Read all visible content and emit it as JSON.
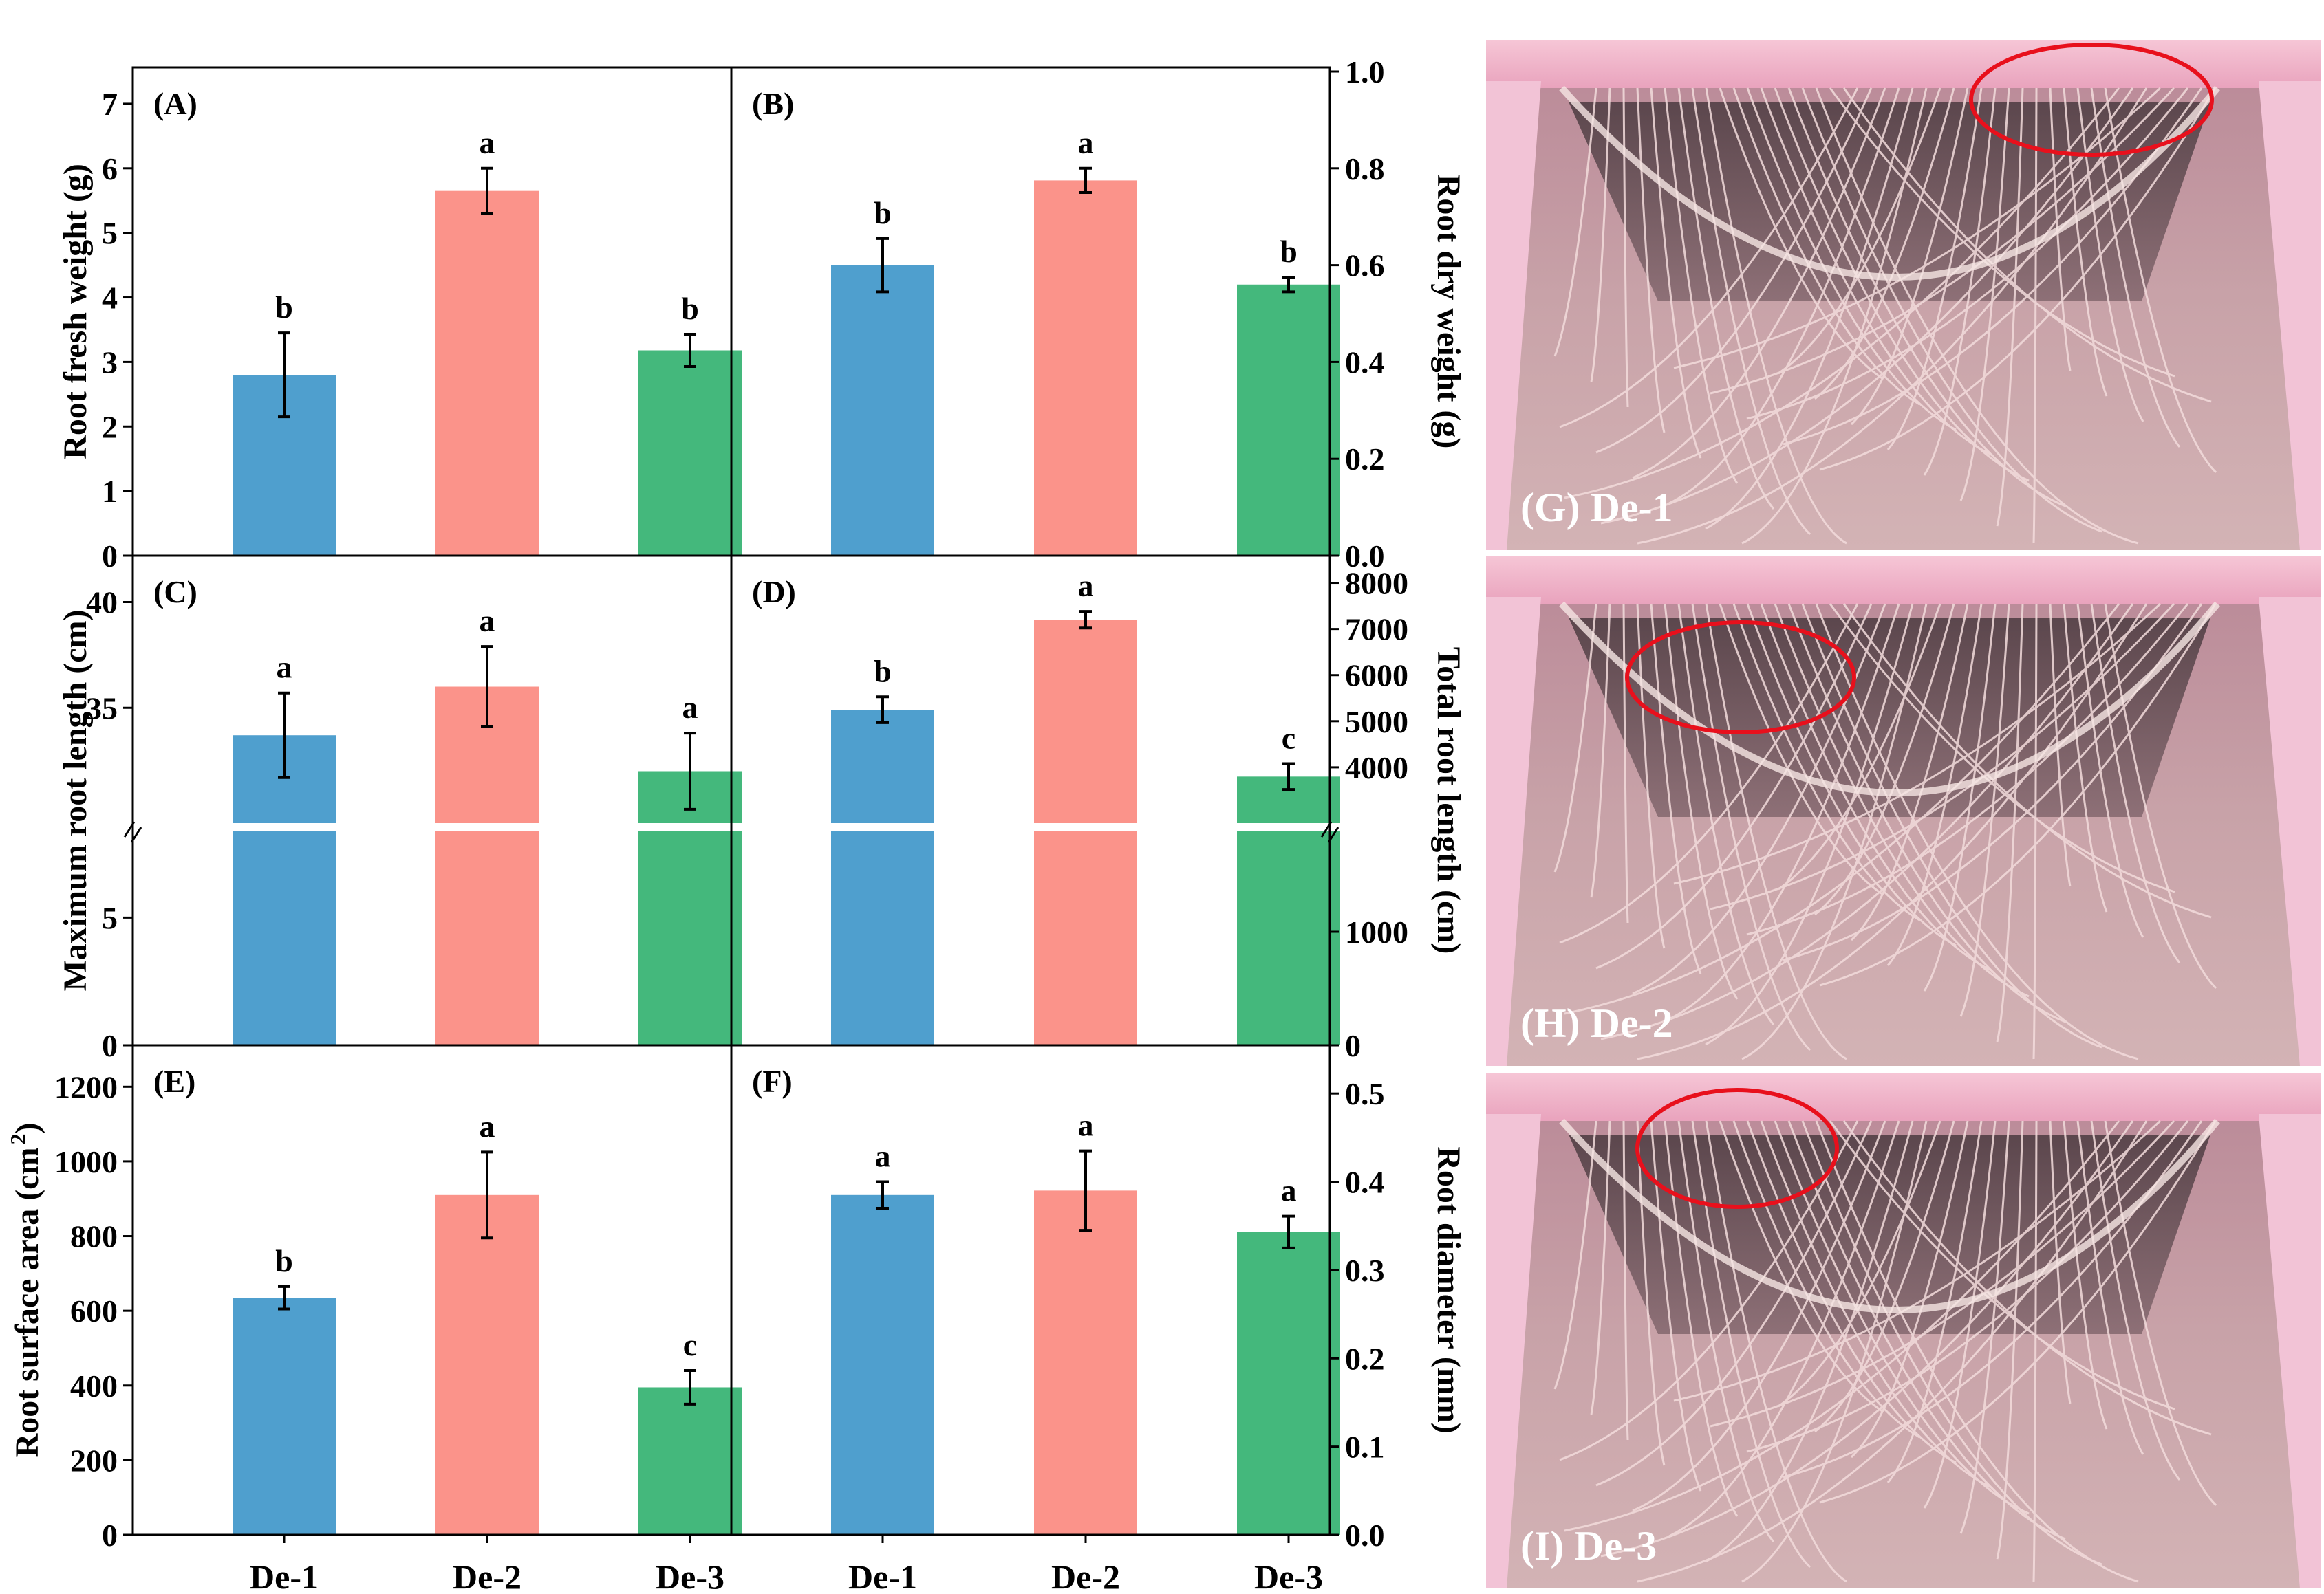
{
  "colors": {
    "De-1": "#4f9fce",
    "De-2": "#fb938a",
    "De-3": "#44b87c",
    "ellipse": "#e8101c"
  },
  "chart_data": [
    {
      "id": "A",
      "type": "bar",
      "label": "(A)",
      "categories": [
        "De-1",
        "De-2",
        "De-3"
      ],
      "values": [
        2.8,
        5.65,
        3.18
      ],
      "errors": [
        0.65,
        0.35,
        0.25
      ],
      "sig": [
        "b",
        "a",
        "b"
      ],
      "ylabel": "Root fresh weight (g)",
      "ylim": [
        0,
        7.5
      ],
      "yaxis": "left",
      "ticks": [
        0,
        1,
        2,
        3,
        4,
        5,
        6,
        7
      ],
      "tick_labels": [
        "0",
        "1",
        "2",
        "3",
        "4",
        "5",
        "6",
        "7"
      ]
    },
    {
      "id": "B",
      "type": "bar",
      "label": "(B)",
      "categories": [
        "De-1",
        "De-2",
        "De-3"
      ],
      "values": [
        0.6,
        0.775,
        0.56
      ],
      "errors": [
        0.055,
        0.025,
        0.015
      ],
      "sig": [
        "b",
        "a",
        "b"
      ],
      "ylabel": "Root dry weight (g)",
      "ylim": [
        0,
        1.0
      ],
      "yaxis": "right",
      "ticks": [
        0,
        0.2,
        0.4,
        0.6,
        0.8,
        1.0
      ],
      "tick_labels": [
        "0.0",
        "0.2",
        "0.4",
        "0.6",
        "0.8",
        "1.0"
      ]
    },
    {
      "id": "C",
      "type": "bar",
      "label": "(C)",
      "categories": [
        "De-1",
        "De-2",
        "De-3"
      ],
      "values": [
        33.7,
        36.0,
        32.0
      ],
      "errors": [
        2.0,
        1.9,
        1.8
      ],
      "sig": [
        "a",
        "a",
        "a"
      ],
      "ylabel": "Maximum root length (cm)",
      "yaxis": "left",
      "broken_axis": true,
      "lower_range": [
        0,
        8
      ],
      "upper_range": [
        30,
        42
      ],
      "ticks": [
        0,
        5,
        35,
        40
      ],
      "tick_labels": [
        "0",
        "5",
        "35",
        "40"
      ]
    },
    {
      "id": "D",
      "type": "bar",
      "label": "(D)",
      "categories": [
        "De-1",
        "De-2",
        "De-3"
      ],
      "values": [
        5250,
        7200,
        3800
      ],
      "errors": [
        280,
        180,
        280
      ],
      "sig": [
        "b",
        "a",
        "c"
      ],
      "ylabel": "Total root length (cm)",
      "yaxis": "right",
      "broken_axis": true,
      "lower_range": [
        0,
        1800
      ],
      "upper_range": [
        3000,
        8500
      ],
      "ticks": [
        0,
        1000,
        4000,
        5000,
        6000,
        7000,
        8000
      ],
      "tick_labels": [
        "0",
        "1000",
        "4000",
        "5000",
        "6000",
        "7000",
        "8000"
      ]
    },
    {
      "id": "E",
      "type": "bar",
      "label": "(E)",
      "categories": [
        "De-1",
        "De-2",
        "De-3"
      ],
      "values": [
        635,
        910,
        395
      ],
      "errors": [
        30,
        115,
        45
      ],
      "sig": [
        "b",
        "a",
        "c"
      ],
      "ylabel": "Root surface area (cm²)",
      "ylim": [
        0,
        1300
      ],
      "yaxis": "left",
      "ticks": [
        0,
        200,
        400,
        600,
        800,
        1000,
        1200
      ],
      "tick_labels": [
        "0",
        "200",
        "400",
        "600",
        "800",
        "1000",
        "1200"
      ]
    },
    {
      "id": "F",
      "type": "bar",
      "label": "(F)",
      "categories": [
        "De-1",
        "De-2",
        "De-3"
      ],
      "values": [
        0.385,
        0.39,
        0.343
      ],
      "errors": [
        0.015,
        0.045,
        0.018
      ],
      "sig": [
        "a",
        "a",
        "a"
      ],
      "ylabel": "Root diameter (mm)",
      "ylim": [
        0,
        0.55
      ],
      "yaxis": "right",
      "ticks": [
        0,
        0.1,
        0.2,
        0.3,
        0.4,
        0.5
      ],
      "tick_labels": [
        "0.0",
        "0.1",
        "0.2",
        "0.3",
        "0.4",
        "0.5"
      ]
    }
  ],
  "photos": [
    {
      "id": "G",
      "label": "(G)  De-1"
    },
    {
      "id": "H",
      "label": "(H)  De-2"
    },
    {
      "id": "I",
      "label": "(I)  De-3"
    }
  ]
}
